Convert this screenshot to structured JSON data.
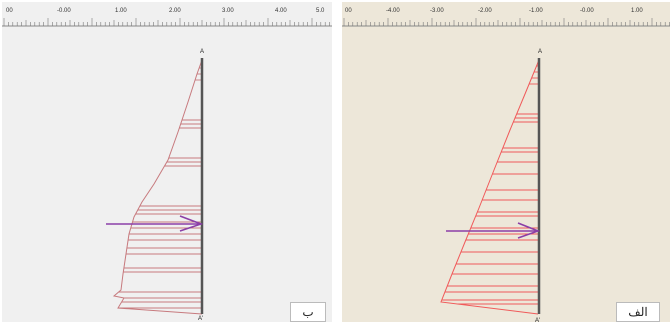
{
  "panels": [
    {
      "id": "b",
      "label": "ب",
      "ruler_ticks": [
        "00",
        "-0.00",
        "1.00",
        "2.00",
        "3.00",
        "4.00",
        "5.0"
      ],
      "node_top": "A",
      "node_bottom": "A'",
      "colors": {
        "background": "#f0f0f0",
        "profile": "#c77a7e",
        "arrow": "#8b3fa7",
        "wall": "#555555"
      }
    },
    {
      "id": "alef",
      "label": "الف",
      "ruler_ticks": [
        "00",
        "-4.00",
        "-3.00",
        "-2.00",
        "-1.00",
        "-0.00",
        "1.00"
      ],
      "node_top": "A",
      "node_bottom": "A'",
      "colors": {
        "background": "#ede7d9",
        "profile": "#f05a5a",
        "arrow": "#8b3fa7",
        "wall": "#555555"
      }
    }
  ]
}
